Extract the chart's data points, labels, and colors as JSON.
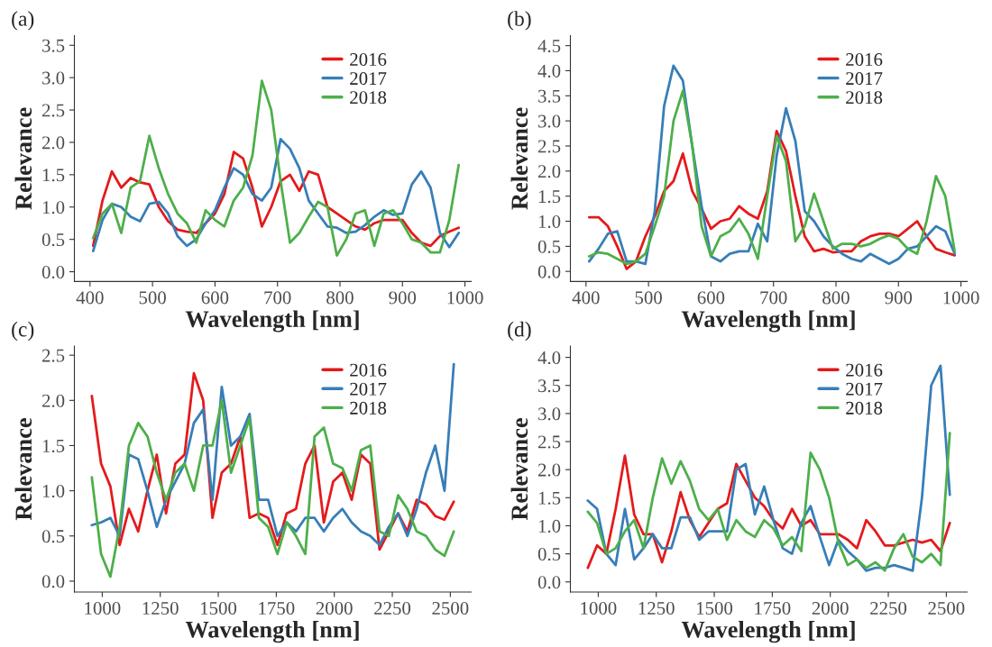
{
  "chart_data": [
    {
      "type": "line",
      "title": "(a)",
      "xlabel": "Wavelength [nm]",
      "ylabel": "Relevance",
      "x": [
        405,
        420,
        435,
        450,
        465,
        480,
        495,
        510,
        525,
        540,
        555,
        570,
        585,
        600,
        615,
        630,
        645,
        660,
        675,
        690,
        705,
        720,
        735,
        750,
        765,
        780,
        795,
        810,
        825,
        840,
        855,
        870,
        885,
        900,
        915,
        930,
        945,
        960,
        975,
        990
      ],
      "series": [
        {
          "name": "2016",
          "color": "#e41a1c",
          "values": [
            0.4,
            1.1,
            1.55,
            1.3,
            1.45,
            1.38,
            1.35,
            1.0,
            0.78,
            0.65,
            0.62,
            0.6,
            0.75,
            0.9,
            1.2,
            1.85,
            1.75,
            1.3,
            0.7,
            1.0,
            1.4,
            1.5,
            1.25,
            1.55,
            1.5,
            1.0,
            0.9,
            0.8,
            0.7,
            0.65,
            0.75,
            0.8,
            0.8,
            0.8,
            0.6,
            0.45,
            0.4,
            0.55,
            0.62,
            0.68
          ]
        },
        {
          "name": "2017",
          "color": "#377eb8",
          "values": [
            0.32,
            0.8,
            1.05,
            1.0,
            0.85,
            0.78,
            1.05,
            1.08,
            0.9,
            0.55,
            0.4,
            0.5,
            0.75,
            0.95,
            1.3,
            1.6,
            1.5,
            1.2,
            1.1,
            1.3,
            2.05,
            1.9,
            1.6,
            1.1,
            0.9,
            0.7,
            0.68,
            0.6,
            0.62,
            0.72,
            0.85,
            0.95,
            0.88,
            0.9,
            1.35,
            1.55,
            1.3,
            0.6,
            0.38,
            0.6
          ]
        },
        {
          "name": "2018",
          "color": "#4daf4a",
          "values": [
            0.52,
            0.9,
            1.05,
            0.6,
            1.3,
            1.4,
            2.1,
            1.6,
            1.2,
            0.9,
            0.75,
            0.45,
            0.95,
            0.8,
            0.7,
            1.1,
            1.3,
            1.8,
            2.95,
            2.5,
            1.4,
            0.45,
            0.6,
            0.85,
            1.08,
            1.0,
            0.25,
            0.5,
            0.9,
            0.95,
            0.4,
            0.9,
            0.95,
            0.75,
            0.5,
            0.45,
            0.3,
            0.3,
            0.8,
            1.65
          ]
        }
      ],
      "xlim": [
        375,
        1010
      ],
      "ylim": [
        -0.15,
        3.65
      ],
      "xticks": [
        400,
        500,
        600,
        700,
        800,
        900,
        1000
      ],
      "yticks": [
        {
          "value": 0,
          "label": "0.0"
        },
        {
          "value": 0.5,
          "label": "0.5"
        },
        {
          "value": 1,
          "label": "1.0"
        },
        {
          "value": 1.5,
          "label": "1.5"
        },
        {
          "value": 2,
          "label": "2.0"
        },
        {
          "value": 2.5,
          "label": "2.5"
        },
        {
          "value": 3,
          "label": "3.0"
        },
        {
          "value": 3.5,
          "label": "3.5"
        }
      ],
      "legend": "top right",
      "grid": false,
      "line_style": "solid"
    },
    {
      "type": "line",
      "title": "(b)",
      "xlabel": "Wavelength [nm]",
      "ylabel": "Relevance",
      "x": [
        405,
        420,
        435,
        450,
        465,
        480,
        495,
        510,
        525,
        540,
        555,
        570,
        585,
        600,
        615,
        630,
        645,
        660,
        675,
        690,
        705,
        720,
        735,
        750,
        765,
        780,
        795,
        810,
        825,
        840,
        855,
        870,
        885,
        900,
        915,
        930,
        945,
        960,
        975,
        990
      ],
      "series": [
        {
          "name": "2016",
          "color": "#e41a1c",
          "values": [
            1.08,
            1.08,
            0.9,
            0.5,
            0.05,
            0.2,
            0.7,
            1.1,
            1.6,
            1.8,
            2.35,
            1.6,
            1.25,
            0.85,
            1.0,
            1.05,
            1.3,
            1.15,
            1.05,
            1.6,
            2.8,
            2.4,
            1.5,
            0.7,
            0.4,
            0.45,
            0.38,
            0.4,
            0.4,
            0.6,
            0.7,
            0.75,
            0.75,
            0.7,
            0.85,
            1.0,
            0.7,
            0.45,
            0.38,
            0.32
          ]
        },
        {
          "name": "2017",
          "color": "#377eb8",
          "values": [
            0.2,
            0.45,
            0.75,
            0.8,
            0.2,
            0.2,
            0.15,
            1.2,
            3.3,
            4.1,
            3.8,
            2.5,
            1.3,
            0.3,
            0.2,
            0.35,
            0.4,
            0.4,
            0.95,
            0.6,
            2.3,
            3.25,
            2.6,
            1.2,
            1.0,
            0.7,
            0.5,
            0.35,
            0.25,
            0.2,
            0.35,
            0.25,
            0.15,
            0.25,
            0.45,
            0.5,
            0.7,
            0.9,
            0.8,
            0.35
          ]
        },
        {
          "name": "2018",
          "color": "#4daf4a",
          "values": [
            0.3,
            0.38,
            0.35,
            0.25,
            0.15,
            0.2,
            0.35,
            0.9,
            1.5,
            3.0,
            3.6,
            2.5,
            0.9,
            0.3,
            0.7,
            0.8,
            1.05,
            0.75,
            0.25,
            1.5,
            2.7,
            2.2,
            0.6,
            0.9,
            1.55,
            1.0,
            0.45,
            0.55,
            0.55,
            0.5,
            0.55,
            0.65,
            0.72,
            0.65,
            0.45,
            0.35,
            1.0,
            1.9,
            1.5,
            0.4
          ]
        }
      ],
      "xlim": [
        375,
        1010
      ],
      "ylim": [
        -0.2,
        4.7
      ],
      "xticks": [
        400,
        500,
        600,
        700,
        800,
        900,
        1000
      ],
      "yticks": [
        {
          "value": 0,
          "label": "0.0"
        },
        {
          "value": 0.5,
          "label": "0.5"
        },
        {
          "value": 1,
          "label": "1.0"
        },
        {
          "value": 1.5,
          "label": "1.5"
        },
        {
          "value": 2,
          "label": "2.0"
        },
        {
          "value": 2.5,
          "label": "2.5"
        },
        {
          "value": 3,
          "label": "3.0"
        },
        {
          "value": 3.5,
          "label": "3.5"
        },
        {
          "value": 4,
          "label": "4.0"
        },
        {
          "value": 4.5,
          "label": "4.5"
        }
      ],
      "legend": "top right",
      "grid": false,
      "line_style": "solid"
    },
    {
      "type": "line",
      "title": "(c)",
      "xlabel": "Wavelength [nm]",
      "ylabel": "Relevance",
      "x": [
        955,
        995,
        1035,
        1075,
        1115,
        1155,
        1195,
        1235,
        1275,
        1315,
        1355,
        1395,
        1435,
        1475,
        1515,
        1555,
        1595,
        1635,
        1675,
        1715,
        1755,
        1795,
        1835,
        1875,
        1915,
        1955,
        1995,
        2035,
        2075,
        2115,
        2155,
        2195,
        2235,
        2275,
        2315,
        2355,
        2395,
        2435,
        2475,
        2515
      ],
      "series": [
        {
          "name": "2016",
          "color": "#e41a1c",
          "values": [
            2.05,
            1.3,
            1.05,
            0.4,
            0.8,
            0.55,
            1.0,
            1.4,
            0.75,
            1.3,
            1.4,
            2.3,
            2.0,
            0.7,
            1.2,
            1.3,
            1.6,
            0.7,
            0.75,
            0.7,
            0.4,
            0.75,
            0.8,
            1.3,
            1.5,
            0.65,
            1.1,
            1.2,
            0.9,
            1.4,
            1.3,
            0.35,
            0.55,
            0.75,
            0.55,
            0.9,
            0.85,
            0.72,
            0.68,
            0.88
          ]
        },
        {
          "name": "2017",
          "color": "#377eb8",
          "values": [
            0.62,
            0.65,
            0.7,
            0.5,
            1.4,
            1.35,
            1.0,
            0.6,
            0.9,
            1.1,
            1.3,
            1.75,
            1.9,
            0.9,
            2.15,
            1.5,
            1.6,
            1.85,
            0.9,
            0.9,
            0.5,
            0.65,
            0.55,
            0.7,
            0.7,
            0.55,
            0.7,
            0.8,
            0.65,
            0.55,
            0.5,
            0.4,
            0.6,
            0.75,
            0.5,
            0.8,
            1.2,
            1.5,
            1.0,
            2.4
          ]
        },
        {
          "name": "2018",
          "color": "#4daf4a",
          "values": [
            1.15,
            0.3,
            0.05,
            0.6,
            1.5,
            1.75,
            1.6,
            1.2,
            0.9,
            1.2,
            1.3,
            1.0,
            1.5,
            1.5,
            2.0,
            1.2,
            1.5,
            1.8,
            0.7,
            0.6,
            0.3,
            0.65,
            0.5,
            0.3,
            1.6,
            1.7,
            1.3,
            1.25,
            1.0,
            1.45,
            1.5,
            0.55,
            0.5,
            0.95,
            0.8,
            0.55,
            0.5,
            0.35,
            0.28,
            0.55
          ]
        }
      ],
      "xlim": [
        880,
        2590
      ],
      "ylim": [
        -0.12,
        2.6
      ],
      "xticks": [
        1000,
        1250,
        1500,
        1750,
        2000,
        2250,
        2500
      ],
      "yticks": [
        {
          "value": 0,
          "label": "0.0"
        },
        {
          "value": 0.5,
          "label": "0.5"
        },
        {
          "value": 1,
          "label": "1.0"
        },
        {
          "value": 1.5,
          "label": "1.5"
        },
        {
          "value": 2,
          "label": "2.0"
        },
        {
          "value": 2.5,
          "label": "2.5"
        }
      ],
      "legend": "top right",
      "grid": false,
      "line_style": "solid"
    },
    {
      "type": "line",
      "title": "(d)",
      "xlabel": "Wavelength [nm]",
      "ylabel": "Relevance",
      "x": [
        955,
        995,
        1035,
        1075,
        1115,
        1155,
        1195,
        1235,
        1275,
        1315,
        1355,
        1395,
        1435,
        1475,
        1515,
        1555,
        1595,
        1635,
        1675,
        1715,
        1755,
        1795,
        1835,
        1875,
        1915,
        1955,
        1995,
        2035,
        2075,
        2115,
        2155,
        2195,
        2235,
        2275,
        2315,
        2355,
        2395,
        2435,
        2475,
        2515
      ],
      "series": [
        {
          "name": "2016",
          "color": "#e41a1c",
          "values": [
            0.25,
            0.65,
            0.5,
            1.3,
            2.25,
            1.2,
            0.85,
            0.85,
            0.35,
            0.9,
            1.6,
            1.1,
            0.8,
            1.05,
            1.3,
            1.4,
            2.1,
            1.8,
            1.5,
            1.35,
            1.1,
            0.95,
            1.3,
            1.0,
            1.1,
            0.85,
            0.85,
            0.85,
            0.75,
            0.6,
            1.1,
            0.9,
            0.65,
            0.65,
            0.7,
            0.75,
            0.7,
            0.75,
            0.55,
            1.05
          ]
        },
        {
          "name": "2017",
          "color": "#377eb8",
          "values": [
            1.45,
            1.3,
            0.5,
            0.3,
            1.3,
            0.4,
            0.6,
            0.85,
            0.6,
            0.6,
            1.15,
            1.15,
            0.75,
            0.9,
            0.9,
            0.9,
            2.0,
            2.1,
            1.2,
            1.7,
            1.1,
            0.6,
            0.5,
            1.05,
            1.35,
            0.8,
            0.3,
            0.75,
            0.55,
            0.4,
            0.2,
            0.25,
            0.25,
            0.3,
            0.25,
            0.2,
            1.5,
            3.5,
            3.85,
            1.55
          ]
        },
        {
          "name": "2018",
          "color": "#4daf4a",
          "values": [
            1.25,
            1.05,
            0.5,
            0.6,
            0.9,
            1.1,
            0.6,
            1.5,
            2.2,
            1.75,
            2.15,
            1.8,
            1.3,
            1.1,
            1.3,
            0.75,
            1.1,
            0.9,
            0.8,
            1.1,
            0.95,
            0.65,
            0.8,
            0.55,
            2.3,
            2.0,
            1.5,
            0.7,
            0.3,
            0.4,
            0.25,
            0.35,
            0.2,
            0.6,
            0.85,
            0.45,
            0.35,
            0.5,
            0.3,
            2.65
          ]
        }
      ],
      "xlim": [
        880,
        2590
      ],
      "ylim": [
        -0.18,
        4.2
      ],
      "xticks": [
        1000,
        1250,
        1500,
        1750,
        2000,
        2250,
        2500
      ],
      "yticks": [
        {
          "value": 0,
          "label": "0.0"
        },
        {
          "value": 0.5,
          "label": "0.5"
        },
        {
          "value": 1,
          "label": "1.0"
        },
        {
          "value": 1.5,
          "label": "1.5"
        },
        {
          "value": 2,
          "label": "2.0"
        },
        {
          "value": 2.5,
          "label": "2.5"
        },
        {
          "value": 3,
          "label": "3.0"
        },
        {
          "value": 3.5,
          "label": "3.5"
        },
        {
          "value": 4,
          "label": "4.0"
        }
      ],
      "legend": "top right",
      "grid": false,
      "line_style": "solid"
    }
  ]
}
